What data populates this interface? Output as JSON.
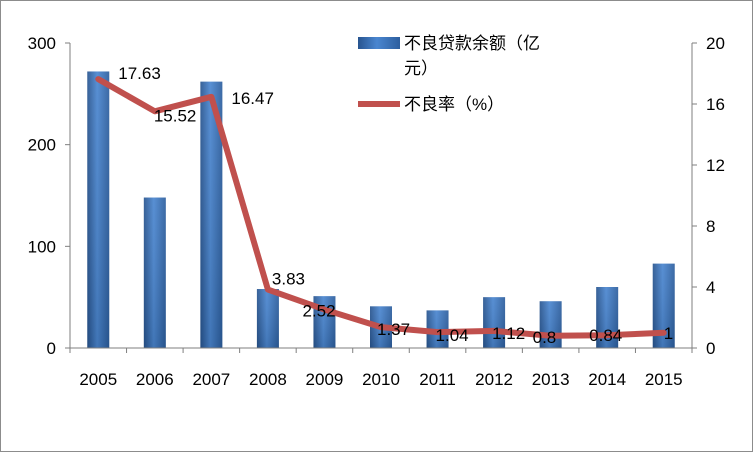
{
  "chart_data": {
    "type": "bar",
    "categories": [
      "2005",
      "2006",
      "2007",
      "2008",
      "2009",
      "2010",
      "2011",
      "2012",
      "2013",
      "2014",
      "2015"
    ],
    "series": [
      {
        "name": "不良贷款余额（亿元）",
        "type": "bar",
        "axis": "left",
        "values": [
          272,
          148,
          262,
          58,
          51,
          41,
          37,
          50,
          46,
          60,
          83
        ],
        "color": "#3a6eb5"
      },
      {
        "name": "不良率（%）",
        "type": "line",
        "axis": "right",
        "values": [
          17.63,
          15.52,
          16.47,
          3.83,
          2.52,
          1.37,
          1.04,
          1.12,
          0.8,
          0.84,
          1
        ],
        "data_labels": [
          "17.63",
          "15.52",
          "16.47",
          "3.83",
          "2.52",
          "1.37",
          "1.04",
          "1.12",
          "0.8",
          "0.84",
          "1"
        ],
        "color": "#c0504d"
      }
    ],
    "y_left": {
      "lim": [
        0,
        300
      ],
      "ticks": [
        "0",
        "100",
        "200",
        "300"
      ]
    },
    "y_right": {
      "lim": [
        0,
        20
      ],
      "ticks": [
        "0",
        "4",
        "8",
        "12",
        "16",
        "20"
      ]
    },
    "grid": false,
    "legend_position": "top-right"
  }
}
